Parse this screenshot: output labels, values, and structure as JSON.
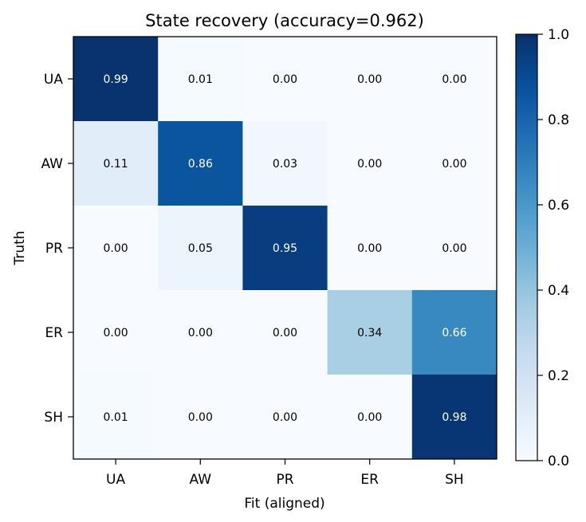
{
  "chart_data": {
    "type": "heatmap",
    "title": "State recovery (accuracy=0.962)",
    "xlabel": "Fit (aligned)",
    "ylabel": "Truth",
    "x_categories": [
      "UA",
      "AW",
      "PR",
      "ER",
      "SH"
    ],
    "y_categories": [
      "UA",
      "AW",
      "PR",
      "ER",
      "SH"
    ],
    "values": [
      [
        0.99,
        0.01,
        0.0,
        0.0,
        0.0
      ],
      [
        0.11,
        0.86,
        0.03,
        0.0,
        0.0
      ],
      [
        0.0,
        0.05,
        0.95,
        0.0,
        0.0
      ],
      [
        0.0,
        0.0,
        0.0,
        0.34,
        0.66
      ],
      [
        0.01,
        0.0,
        0.0,
        0.0,
        0.98
      ]
    ],
    "value_labels": [
      [
        "0.99",
        "0.01",
        "0.00",
        "0.00",
        "0.00"
      ],
      [
        "0.11",
        "0.86",
        "0.03",
        "0.00",
        "0.00"
      ],
      [
        "0.00",
        "0.05",
        "0.95",
        "0.00",
        "0.00"
      ],
      [
        "0.00",
        "0.00",
        "0.00",
        "0.34",
        "0.66"
      ],
      [
        "0.01",
        "0.00",
        "0.00",
        "0.00",
        "0.98"
      ]
    ],
    "colorbar": {
      "range": [
        0,
        1
      ],
      "ticks": [
        "0.0",
        "0.2",
        "0.4",
        "0.6",
        "0.8",
        "1.0"
      ],
      "colormap": "Blues"
    }
  }
}
